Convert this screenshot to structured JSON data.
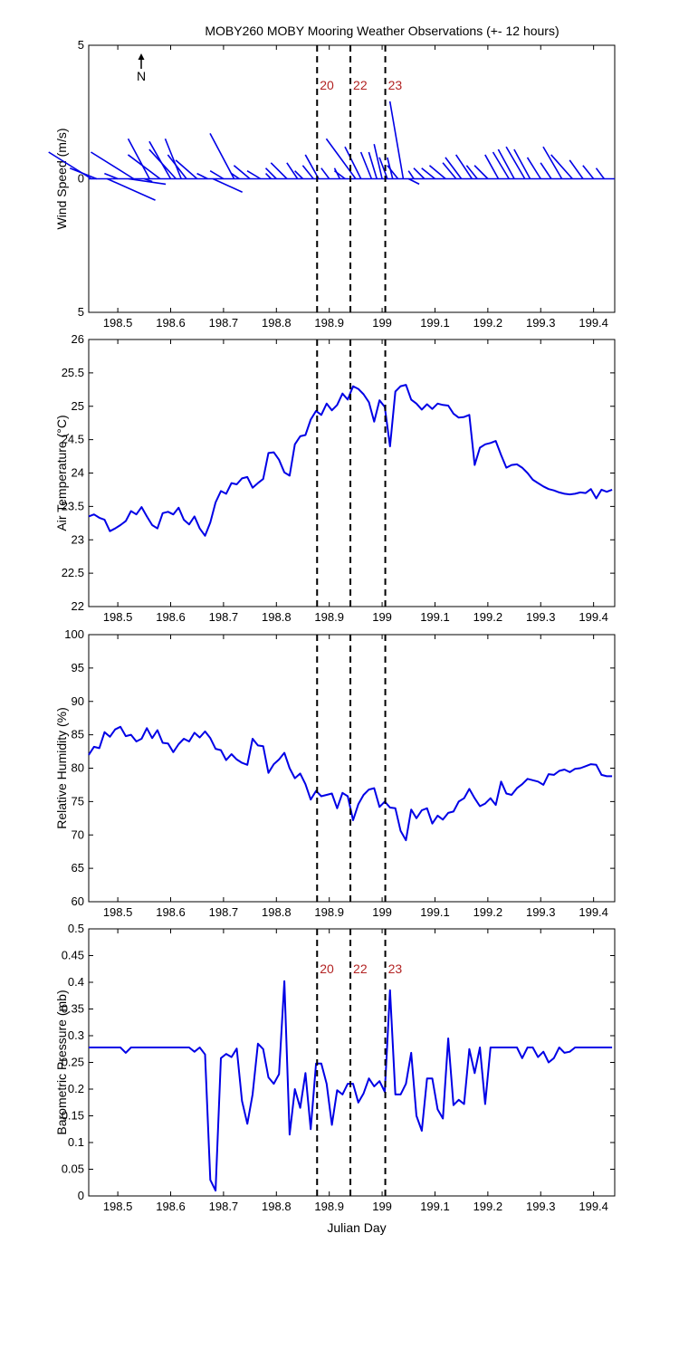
{
  "title": "MOBY260 MOBY Mooring Weather Observations (+- 12 hours)",
  "xlabel": "Julian Day",
  "north_label": "N",
  "x_ticks": [
    198.5,
    198.6,
    198.7,
    198.8,
    198.9,
    199,
    199.1,
    199.2,
    199.3,
    199.4
  ],
  "x_tick_labels": [
    "198.5",
    "198.6",
    "198.7",
    "198.8",
    "198.9",
    "199",
    "199.1",
    "199.2",
    "199.3",
    "199.4"
  ],
  "xlim": [
    198.445,
    199.44
  ],
  "colors": {
    "series": "#0000e6",
    "marker_text": "#b22222"
  },
  "markers": [
    {
      "x": 198.877,
      "label": "20"
    },
    {
      "x": 198.94,
      "label": "22"
    },
    {
      "x": 199.006,
      "label": "23"
    }
  ],
  "chart_data": [
    {
      "type": "line",
      "name": "wind",
      "ylabel": "Wind Speed (m/s)",
      "ylim": [
        -5,
        5
      ],
      "y_ticks": [
        5,
        0,
        -5
      ],
      "y_tick_labels": [
        "5",
        "0",
        "5"
      ],
      "show_marker_labels": true,
      "sticks": [
        {
          "x": 198.45,
          "u": -1.6,
          "v": 1.0
        },
        {
          "x": 198.46,
          "u": -1.0,
          "v": 0.4
        },
        {
          "x": 198.48,
          "u": 1.8,
          "v": -0.8
        },
        {
          "x": 198.5,
          "u": -0.5,
          "v": 0.2
        },
        {
          "x": 198.52,
          "u": 1.4,
          "v": -0.2
        },
        {
          "x": 198.53,
          "u": -1.6,
          "v": 1.0
        },
        {
          "x": 198.55,
          "u": 0.3,
          "v": -0.1
        },
        {
          "x": 198.56,
          "u": -0.8,
          "v": 1.5
        },
        {
          "x": 198.58,
          "u": -1.2,
          "v": 0.9
        },
        {
          "x": 198.6,
          "u": -0.8,
          "v": 1.4
        },
        {
          "x": 198.61,
          "u": -1.0,
          "v": 1.1
        },
        {
          "x": 198.62,
          "u": -0.6,
          "v": 1.5
        },
        {
          "x": 198.63,
          "u": -0.7,
          "v": 0.9
        },
        {
          "x": 198.65,
          "u": -0.8,
          "v": 0.7
        },
        {
          "x": 198.67,
          "u": -0.4,
          "v": 0.2
        },
        {
          "x": 198.68,
          "u": 1.1,
          "v": -0.5
        },
        {
          "x": 198.7,
          "u": -0.5,
          "v": 0.3
        },
        {
          "x": 198.72,
          "u": -0.9,
          "v": 1.7
        },
        {
          "x": 198.73,
          "u": -0.3,
          "v": 0.2
        },
        {
          "x": 198.75,
          "u": -0.6,
          "v": 0.5
        },
        {
          "x": 198.77,
          "u": -0.5,
          "v": 0.3
        },
        {
          "x": 198.79,
          "u": -0.2,
          "v": 0.2
        },
        {
          "x": 198.8,
          "u": -0.4,
          "v": 0.4
        },
        {
          "x": 198.82,
          "u": -0.6,
          "v": 0.6
        },
        {
          "x": 198.84,
          "u": -0.4,
          "v": 0.6
        },
        {
          "x": 198.85,
          "u": -0.3,
          "v": 0.3
        },
        {
          "x": 198.87,
          "u": -0.4,
          "v": 0.5
        },
        {
          "x": 198.88,
          "u": -0.5,
          "v": 0.9
        },
        {
          "x": 198.9,
          "u": -0.3,
          "v": 0.4
        },
        {
          "x": 198.92,
          "u": -0.2,
          "v": 0.4
        },
        {
          "x": 198.93,
          "u": -0.4,
          "v": 0.3
        },
        {
          "x": 198.95,
          "u": -1.1,
          "v": 1.5
        },
        {
          "x": 198.96,
          "u": -0.6,
          "v": 1.2
        },
        {
          "x": 198.98,
          "u": -0.4,
          "v": 1.0
        },
        {
          "x": 198.99,
          "u": -0.3,
          "v": 1.0
        },
        {
          "x": 199.0,
          "u": -0.3,
          "v": 1.3
        },
        {
          "x": 199.01,
          "u": -0.3,
          "v": 0.8
        },
        {
          "x": 199.02,
          "u": -0.2,
          "v": 0.8
        },
        {
          "x": 199.03,
          "u": -0.4,
          "v": 0.5
        },
        {
          "x": 199.04,
          "u": -0.5,
          "v": 2.9
        },
        {
          "x": 199.05,
          "u": 0.4,
          "v": -0.2
        },
        {
          "x": 199.06,
          "u": -0.2,
          "v": 0.3
        },
        {
          "x": 199.08,
          "u": -0.4,
          "v": 0.4
        },
        {
          "x": 199.1,
          "u": -0.5,
          "v": 0.4
        },
        {
          "x": 199.12,
          "u": -0.6,
          "v": 0.5
        },
        {
          "x": 199.14,
          "u": -0.5,
          "v": 0.6
        },
        {
          "x": 199.15,
          "u": -0.6,
          "v": 0.8
        },
        {
          "x": 199.17,
          "u": -0.6,
          "v": 0.9
        },
        {
          "x": 199.18,
          "u": -0.4,
          "v": 0.5
        },
        {
          "x": 199.2,
          "u": -0.5,
          "v": 0.5
        },
        {
          "x": 199.22,
          "u": -0.5,
          "v": 0.9
        },
        {
          "x": 199.24,
          "u": -0.6,
          "v": 1.0
        },
        {
          "x": 199.25,
          "u": -0.6,
          "v": 1.1
        },
        {
          "x": 199.27,
          "u": -0.7,
          "v": 1.2
        },
        {
          "x": 199.28,
          "u": -0.6,
          "v": 1.1
        },
        {
          "x": 199.3,
          "u": -0.5,
          "v": 0.8
        },
        {
          "x": 199.32,
          "u": -0.4,
          "v": 0.6
        },
        {
          "x": 199.34,
          "u": -0.7,
          "v": 1.2
        },
        {
          "x": 199.36,
          "u": -0.8,
          "v": 0.9
        },
        {
          "x": 199.38,
          "u": -0.5,
          "v": 0.7
        },
        {
          "x": 199.4,
          "u": -0.4,
          "v": 0.5
        },
        {
          "x": 199.42,
          "u": -0.3,
          "v": 0.4
        }
      ]
    },
    {
      "type": "line",
      "name": "air-temperature",
      "ylabel": "Air Temperature (°C)",
      "ylim": [
        22,
        26
      ],
      "y_ticks": [
        22,
        22.5,
        23,
        23.5,
        24,
        24.5,
        25,
        25.5,
        26
      ],
      "y_tick_labels": [
        "22",
        "22.5",
        "23",
        "23.5",
        "24",
        "24.5",
        "25",
        "25.5",
        "26"
      ],
      "show_marker_labels": false,
      "x": [
        198.445,
        198.455,
        198.465,
        198.475,
        198.485,
        198.495,
        198.505,
        198.515,
        198.525,
        198.535,
        198.545,
        198.555,
        198.565,
        198.575,
        198.585,
        198.595,
        198.605,
        198.615,
        198.625,
        198.635,
        198.645,
        198.655,
        198.665,
        198.675,
        198.685,
        198.695,
        198.705,
        198.715,
        198.725,
        198.735,
        198.745,
        198.755,
        198.765,
        198.775,
        198.785,
        198.795,
        198.805,
        198.815,
        198.825,
        198.835,
        198.845,
        198.855,
        198.865,
        198.875,
        198.885,
        198.895,
        198.905,
        198.915,
        198.925,
        198.935,
        198.945,
        198.955,
        198.965,
        198.975,
        198.985,
        198.995,
        199.005,
        199.015,
        199.025,
        199.035,
        199.045,
        199.055,
        199.065,
        199.075,
        199.085,
        199.095,
        199.105,
        199.115,
        199.125,
        199.135,
        199.145,
        199.155,
        199.165,
        199.175,
        199.185,
        199.195,
        199.205,
        199.215,
        199.225,
        199.235,
        199.245,
        199.255,
        199.265,
        199.275,
        199.285,
        199.295,
        199.305,
        199.315,
        199.325,
        199.335,
        199.345,
        199.355,
        199.365,
        199.375,
        199.385,
        199.395,
        199.405,
        199.415,
        199.425,
        199.435
      ],
      "values": [
        23.35,
        23.38,
        23.33,
        23.3,
        23.13,
        23.17,
        23.22,
        23.28,
        23.43,
        23.38,
        23.49,
        23.35,
        23.22,
        23.17,
        23.4,
        23.42,
        23.38,
        23.48,
        23.3,
        23.23,
        23.35,
        23.17,
        23.06,
        23.26,
        23.56,
        23.73,
        23.69,
        23.85,
        23.83,
        23.92,
        23.94,
        23.78,
        23.85,
        23.91,
        24.3,
        24.31,
        24.2,
        24.01,
        23.96,
        24.43,
        24.55,
        24.57,
        24.8,
        24.93,
        24.87,
        25.04,
        24.94,
        25.02,
        25.19,
        25.1,
        25.3,
        25.26,
        25.18,
        25.06,
        24.77,
        25.09,
        24.99,
        24.4,
        25.22,
        25.3,
        25.32,
        25.1,
        25.04,
        24.95,
        25.03,
        24.96,
        25.04,
        25.02,
        25.01,
        24.89,
        24.83,
        24.84,
        24.87,
        24.12,
        24.38,
        24.43,
        24.45,
        24.48,
        24.27,
        24.08,
        24.12,
        24.13,
        24.08,
        24.0,
        23.9,
        23.85,
        23.8,
        23.76,
        23.74,
        23.71,
        23.69,
        23.68,
        23.69,
        23.71,
        23.7,
        23.76,
        23.62,
        23.75,
        23.72,
        23.75
      ]
    },
    {
      "type": "line",
      "name": "relative-humidity",
      "ylabel": "Relative Humidity (%)",
      "ylim": [
        60,
        100
      ],
      "y_ticks": [
        60,
        65,
        70,
        75,
        80,
        85,
        90,
        95,
        100
      ],
      "y_tick_labels": [
        "60",
        "65",
        "70",
        "75",
        "80",
        "85",
        "90",
        "95",
        "100"
      ],
      "show_marker_labels": false,
      "x": [
        198.445,
        198.455,
        198.465,
        198.475,
        198.485,
        198.495,
        198.505,
        198.515,
        198.525,
        198.535,
        198.545,
        198.555,
        198.565,
        198.575,
        198.585,
        198.595,
        198.605,
        198.615,
        198.625,
        198.635,
        198.645,
        198.655,
        198.665,
        198.675,
        198.685,
        198.695,
        198.705,
        198.715,
        198.725,
        198.735,
        198.745,
        198.755,
        198.765,
        198.775,
        198.785,
        198.795,
        198.805,
        198.815,
        198.825,
        198.835,
        198.845,
        198.855,
        198.865,
        198.875,
        198.885,
        198.895,
        198.905,
        198.915,
        198.925,
        198.935,
        198.945,
        198.955,
        198.965,
        198.975,
        198.985,
        198.995,
        199.005,
        199.015,
        199.025,
        199.035,
        199.045,
        199.055,
        199.065,
        199.075,
        199.085,
        199.095,
        199.105,
        199.115,
        199.125,
        199.135,
        199.145,
        199.155,
        199.165,
        199.175,
        199.185,
        199.195,
        199.205,
        199.215,
        199.225,
        199.235,
        199.245,
        199.255,
        199.265,
        199.275,
        199.285,
        199.295,
        199.305,
        199.315,
        199.325,
        199.335,
        199.345,
        199.355,
        199.365,
        199.375,
        199.385,
        199.395,
        199.405,
        199.415,
        199.425,
        199.435
      ],
      "values": [
        82.0,
        83.2,
        83.0,
        85.4,
        84.7,
        85.8,
        86.2,
        84.8,
        85.0,
        84.0,
        84.4,
        86.0,
        84.5,
        85.7,
        83.8,
        83.7,
        82.4,
        83.6,
        84.4,
        84.0,
        85.3,
        84.6,
        85.5,
        84.5,
        82.9,
        82.7,
        81.2,
        82.1,
        81.3,
        80.8,
        80.5,
        84.4,
        83.4,
        83.3,
        79.3,
        80.6,
        81.3,
        82.3,
        80.0,
        78.5,
        79.2,
        77.6,
        75.3,
        76.6,
        75.8,
        76.0,
        76.2,
        74.0,
        76.3,
        75.8,
        72.2,
        74.6,
        76.0,
        76.8,
        77.0,
        74.2,
        75.0,
        74.1,
        74.0,
        70.6,
        69.2,
        73.8,
        72.5,
        73.7,
        74.0,
        71.7,
        72.9,
        72.3,
        73.3,
        73.5,
        75.0,
        75.5,
        76.9,
        75.5,
        74.3,
        74.7,
        75.5,
        74.5,
        78.0,
        76.2,
        76.0,
        77.0,
        77.6,
        78.4,
        78.2,
        78.0,
        77.5,
        79.1,
        79.0,
        79.6,
        79.8,
        79.4,
        79.9,
        80.0,
        80.3,
        80.6,
        80.5,
        79.0,
        78.8,
        78.8
      ]
    },
    {
      "type": "line",
      "name": "barometric-pressure",
      "ylabel": "Barometric Pressure (mb)",
      "ylim": [
        0,
        0.5
      ],
      "y_ticks": [
        0,
        0.05,
        0.1,
        0.15,
        0.2,
        0.25,
        0.3,
        0.35,
        0.4,
        0.45,
        0.5
      ],
      "y_tick_labels": [
        "0",
        "0.05",
        "0.1",
        "0.15",
        "0.2",
        "0.25",
        "0.3",
        "0.35",
        "0.4",
        "0.45",
        "0.5"
      ],
      "show_marker_labels": true,
      "x": [
        198.445,
        198.455,
        198.465,
        198.475,
        198.485,
        198.495,
        198.505,
        198.515,
        198.525,
        198.535,
        198.545,
        198.555,
        198.565,
        198.575,
        198.585,
        198.595,
        198.605,
        198.615,
        198.625,
        198.635,
        198.645,
        198.655,
        198.665,
        198.675,
        198.685,
        198.695,
        198.705,
        198.715,
        198.725,
        198.735,
        198.745,
        198.755,
        198.765,
        198.775,
        198.785,
        198.795,
        198.805,
        198.815,
        198.825,
        198.835,
        198.845,
        198.855,
        198.865,
        198.875,
        198.885,
        198.895,
        198.905,
        198.915,
        198.925,
        198.935,
        198.945,
        198.955,
        198.965,
        198.975,
        198.985,
        198.995,
        199.005,
        199.015,
        199.025,
        199.035,
        199.045,
        199.055,
        199.065,
        199.075,
        199.085,
        199.095,
        199.105,
        199.115,
        199.125,
        199.135,
        199.145,
        199.155,
        199.165,
        199.175,
        199.185,
        199.195,
        199.205,
        199.215,
        199.225,
        199.235,
        199.245,
        199.255,
        199.265,
        199.275,
        199.285,
        199.295,
        199.305,
        199.315,
        199.325,
        199.335,
        199.345,
        199.355,
        199.365,
        199.375,
        199.385,
        199.395,
        199.405,
        199.415,
        199.425,
        199.435
      ],
      "values": [
        0.278,
        0.278,
        0.278,
        0.278,
        0.278,
        0.278,
        0.278,
        0.268,
        0.278,
        0.278,
        0.278,
        0.278,
        0.278,
        0.278,
        0.278,
        0.278,
        0.278,
        0.278,
        0.278,
        0.278,
        0.27,
        0.278,
        0.265,
        0.03,
        0.01,
        0.258,
        0.266,
        0.26,
        0.276,
        0.178,
        0.135,
        0.19,
        0.285,
        0.275,
        0.222,
        0.21,
        0.228,
        0.402,
        0.115,
        0.2,
        0.165,
        0.23,
        0.125,
        0.248,
        0.248,
        0.21,
        0.133,
        0.198,
        0.19,
        0.21,
        0.21,
        0.175,
        0.192,
        0.22,
        0.205,
        0.215,
        0.195,
        0.385,
        0.19,
        0.19,
        0.21,
        0.268,
        0.15,
        0.122,
        0.22,
        0.22,
        0.162,
        0.145,
        0.295,
        0.17,
        0.18,
        0.172,
        0.275,
        0.23,
        0.278,
        0.172,
        0.278,
        0.278,
        0.278,
        0.278,
        0.278,
        0.278,
        0.258,
        0.278,
        0.278,
        0.26,
        0.27,
        0.25,
        0.258,
        0.278,
        0.268,
        0.27,
        0.278,
        0.278,
        0.278,
        0.278,
        0.278,
        0.278,
        0.278,
        0.278
      ]
    }
  ]
}
